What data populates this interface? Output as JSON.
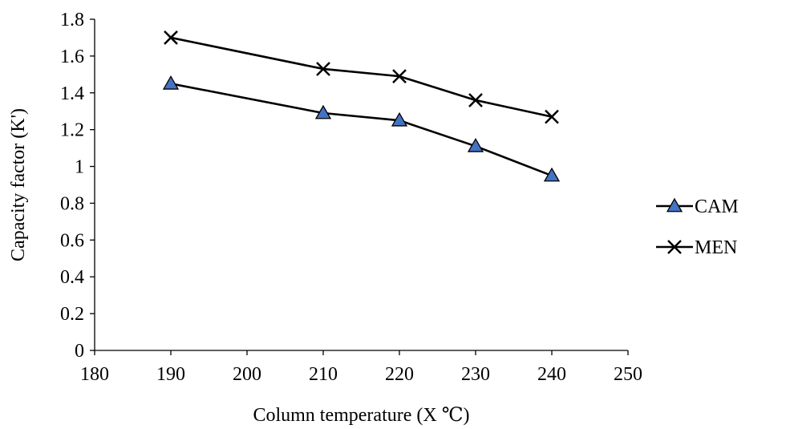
{
  "chart_data": {
    "type": "line",
    "xlabel": "Column temperature (X ℃)",
    "ylabel": "Capacity factor (K')",
    "xlim": [
      180,
      250
    ],
    "ylim": [
      0,
      1.8
    ],
    "x_ticks": [
      "180",
      "190",
      "200",
      "210",
      "220",
      "230",
      "240",
      "250"
    ],
    "y_ticks": [
      "0",
      "0.2",
      "0.4",
      "0.6",
      "0.8",
      "1",
      "1.2",
      "1.4",
      "1.6",
      "1.8"
    ],
    "grid": false,
    "legend_position": "right",
    "series": [
      {
        "name": "CAM",
        "marker": "triangle",
        "marker_color": "#4472C4",
        "x": [
          190,
          210,
          220,
          230,
          240
        ],
        "y": [
          1.45,
          1.29,
          1.25,
          1.11,
          0.95
        ]
      },
      {
        "name": "MEN",
        "marker": "x",
        "marker_color": "#000000",
        "x": [
          190,
          210,
          220,
          230,
          240
        ],
        "y": [
          1.7,
          1.53,
          1.49,
          1.36,
          1.27
        ]
      }
    ]
  }
}
